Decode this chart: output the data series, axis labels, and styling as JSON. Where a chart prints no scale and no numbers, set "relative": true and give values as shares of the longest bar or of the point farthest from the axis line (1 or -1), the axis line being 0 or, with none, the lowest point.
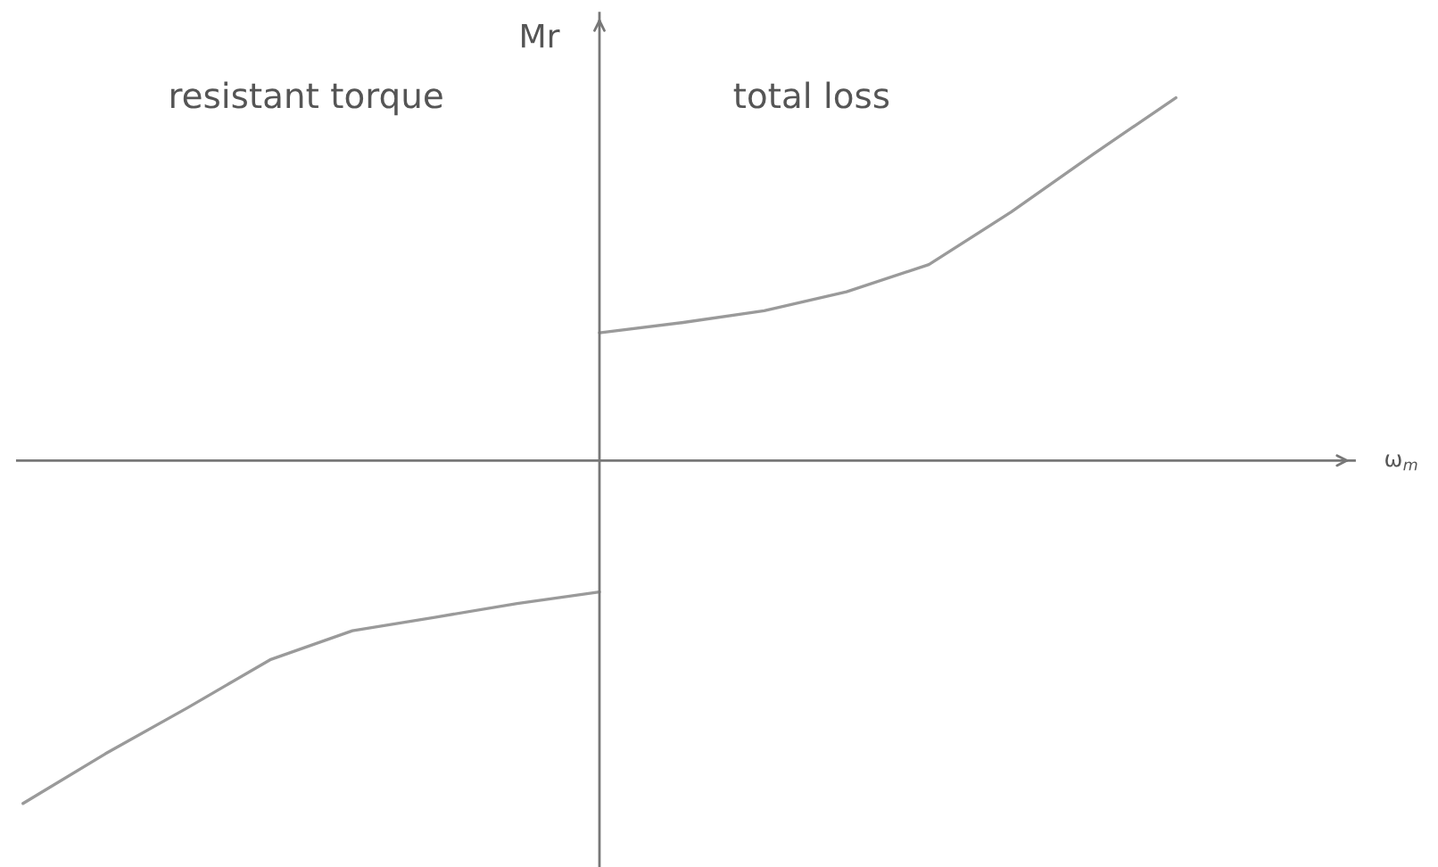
{
  "chart_data": {
    "type": "line",
    "relative": true,
    "ylabel": "Mr",
    "annotations": [
      "resistant torque",
      "total loss",
      "ω$_{m}$"
    ],
    "categories": [
      null,
      null,
      null,
      null,
      null,
      null,
      null,
      null,
      null,
      null,
      null,
      null,
      null,
      null,
      null
    ],
    "series": [
      {
        "color": "#9a9a9a",
        "values": [
          null,
          null,
          null,
          null,
          null,
          null,
          null,
          0.352,
          0.38,
          0.413,
          0.465,
          0.54,
          0.685,
          0.845,
          1
        ]
      },
      {
        "color": "#9a9a9a",
        "values": [
          -0.945,
          -0.808,
          -0.681,
          -0.549,
          -0.469,
          -0.432,
          -0.394,
          -0.362,
          null,
          null,
          null,
          null,
          null,
          null,
          null
        ]
      }
    ]
  }
}
